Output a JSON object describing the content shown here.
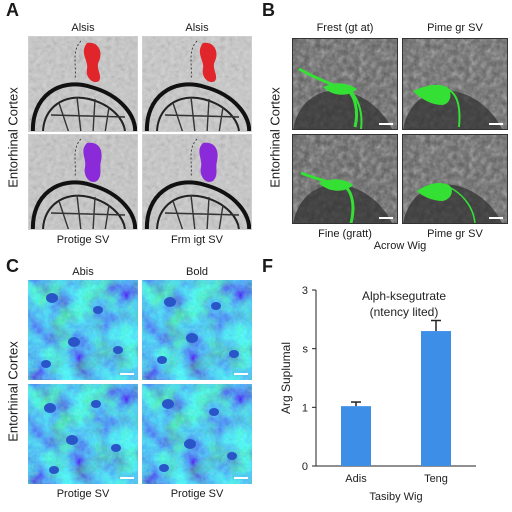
{
  "panels": {
    "A": {
      "letter": "A",
      "side_label": "Entorhinal Cortex",
      "top_labels": [
        "Alsis",
        "Alsis"
      ],
      "bottom_labels": [
        "Protige SV",
        "Frm igt SV"
      ],
      "colors": {
        "top_mark": "#e0262a",
        "bottom_mark": "#8a2ad8"
      }
    },
    "B": {
      "letter": "B",
      "side_label": "Entorhinal Cortex",
      "top_labels": [
        "Frest (gt at)",
        "Pime gr SV"
      ],
      "bottom_labels": [
        "Fine (gratt)",
        "Pime gr SV"
      ],
      "caption": "Acrow Wig",
      "colors": {
        "signal": "#35e035"
      }
    },
    "C": {
      "letter": "C",
      "side_label": "Entorhinal Cortex",
      "top_labels": [
        "Abis",
        "Bold"
      ],
      "bottom_labels": [
        "Protige SV",
        "Protige SV"
      ]
    },
    "F": {
      "letter": "F"
    }
  },
  "chart_data": {
    "type": "bar",
    "title": "Alph-ksegutrate",
    "subtitle": "(ntency lited)",
    "ylabel": "Arg Suplumal",
    "xlabel": "Tasiby Wig",
    "categories": [
      "Adis",
      "Teng"
    ],
    "values": [
      1.02,
      2.3
    ],
    "errors": [
      0.07,
      0.18
    ],
    "ylim": [
      0,
      3
    ],
    "yticks": [
      "0",
      "1",
      "s",
      "3"
    ],
    "bar_color": "#3c8ee6",
    "grid": false
  }
}
